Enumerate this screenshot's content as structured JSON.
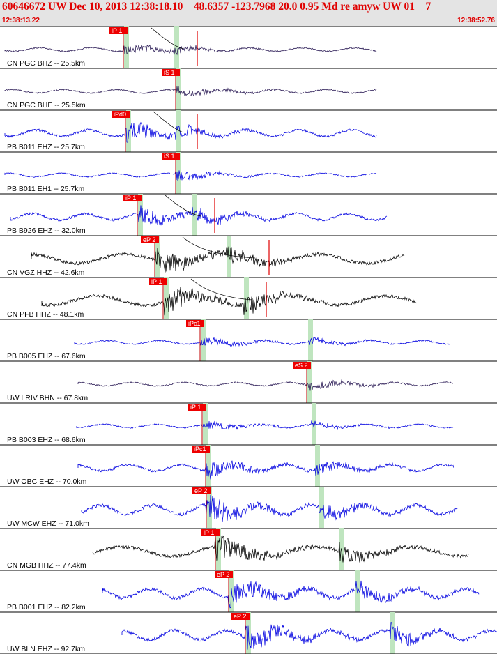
{
  "header": {
    "title": "60646672 UW Dec 10, 2013 12:38:18.10    48.6357 -123.7968 20.0 0.95 Md re amyw UW 01    7",
    "time_start": "12:38:13.22",
    "time_end": "12:38:52.76"
  },
  "colors": {
    "header_bg": "#e4e4e4",
    "header_text": "#e00000",
    "pick_flag": "#ee0000",
    "theoretical_band": "#bfe5bf",
    "trace_blue": "#0000e0",
    "trace_purple": "#2a1a55",
    "trace_black": "#000000"
  },
  "traces": [
    {
      "label": "CN PGC BHZ -- 25.5km",
      "color": "purple",
      "pick": "iP 1",
      "amp": "low",
      "lines": true
    },
    {
      "label": "CN PGC BHE -- 25.5km",
      "color": "purple",
      "pick": "iS 1",
      "amp": "low"
    },
    {
      "label": "PB B011 EHZ -- 25.7km",
      "color": "blue",
      "pick": "iPd0",
      "amp": "mid",
      "lines": true
    },
    {
      "label": "PB B011 EH1 -- 25.7km",
      "color": "blue",
      "pick": "iS 1",
      "amp": "low"
    },
    {
      "label": "PB B926 EHZ -- 32.0km",
      "color": "blue",
      "pick": "iP 1",
      "amp": "mid",
      "lines": true
    },
    {
      "label": "CN VGZ HHZ -- 42.6km",
      "color": "black",
      "pick": "eP 2",
      "amp": "high",
      "lines": true
    },
    {
      "label": "CN PFB HHZ -- 48.1km",
      "color": "black",
      "pick": "iP 1",
      "amp": "high",
      "lines": true
    },
    {
      "label": "PB B005 EHZ -- 67.6km",
      "color": "blue",
      "pick": "iPc1",
      "amp": "low"
    },
    {
      "label": "UW LRIV BHN -- 67.8km",
      "color": "purple",
      "pick": "eS 2",
      "amp": "low"
    },
    {
      "label": "PB B003 EHZ -- 68.6km",
      "color": "blue",
      "pick": "iP 1",
      "amp": "low"
    },
    {
      "label": "UW OBC EHZ -- 70.0km",
      "color": "blue",
      "pick": "iPc1",
      "amp": "mid"
    },
    {
      "label": "UW MCW EHZ -- 71.0km",
      "color": "blue",
      "pick": "eP 2",
      "amp": "high"
    },
    {
      "label": "CN MGB HHZ -- 77.4km",
      "color": "black",
      "pick": "iP 1",
      "amp": "high"
    },
    {
      "label": "PB B001 EHZ -- 82.2km",
      "color": "blue",
      "pick": "eP 2",
      "amp": "high"
    },
    {
      "label": "UW BLN EHZ -- 92.7km",
      "color": "blue",
      "pick": "eP 2",
      "amp": "high"
    }
  ]
}
